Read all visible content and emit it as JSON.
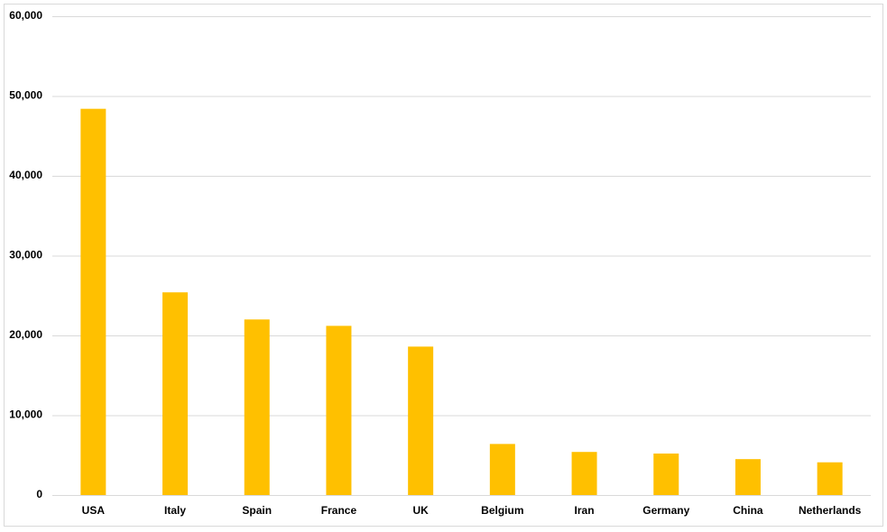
{
  "chart_data": {
    "type": "bar",
    "categories": [
      "USA",
      "Italy",
      "Spain",
      "France",
      "UK",
      "Belgium",
      "Iran",
      "Germany",
      "China",
      "Netherlands"
    ],
    "values": [
      48400,
      25400,
      22000,
      21200,
      18600,
      6400,
      5400,
      5200,
      4500,
      4100
    ],
    "color": "#ffc000",
    "ylim": [
      0,
      60000
    ],
    "yticks": [
      0,
      {
        "value": 10000,
        "label": "10,000"
      },
      {
        "value": 20000,
        "label": "20,000"
      },
      {
        "value": 30000,
        "label": "30,000"
      },
      {
        "value": 40000,
        "label": "40,000"
      },
      {
        "value": 50000,
        "label": "50,000"
      },
      {
        "value": 60000,
        "label": "60,000"
      }
    ],
    "grid": true
  }
}
